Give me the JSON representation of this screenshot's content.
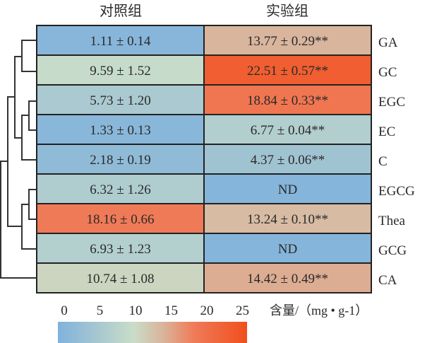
{
  "chart_data": {
    "type": "heatmap",
    "columns": [
      "对照组",
      "实验组"
    ],
    "rows": [
      "GA",
      "GC",
      "EGC",
      "EC",
      "C",
      "EGCG",
      "Thea",
      "GCG",
      "CA"
    ],
    "values": [
      [
        1.11,
        13.77
      ],
      [
        9.59,
        22.51
      ],
      [
        5.73,
        18.84
      ],
      [
        1.33,
        6.77
      ],
      [
        2.18,
        4.37
      ],
      [
        6.32,
        null
      ],
      [
        18.16,
        13.24
      ],
      [
        6.93,
        null
      ],
      [
        10.74,
        14.42
      ]
    ],
    "labels": [
      [
        "1.11 ± 0.14",
        "13.77 ± 0.29**"
      ],
      [
        "9.59 ± 1.52",
        "22.51 ± 0.57**"
      ],
      [
        "5.73 ± 1.20",
        "18.84 ± 0.33**"
      ],
      [
        "1.33 ± 0.13",
        "6.77 ± 0.04**"
      ],
      [
        "2.18 ± 0.19",
        "4.37 ± 0.06**"
      ],
      [
        "6.32 ± 1.26",
        "ND"
      ],
      [
        "18.16 ± 0.66",
        "13.24 ± 0.10**"
      ],
      [
        "6.93 ± 1.23",
        "ND"
      ],
      [
        "10.74 ± 1.08",
        "14.42 ± 0.49**"
      ]
    ],
    "colorbar": {
      "ticks": [
        "0",
        "5",
        "10",
        "15",
        "20",
        "25"
      ],
      "range": [
        0,
        25
      ],
      "label": "含量/（mg • g-1）",
      "stops": [
        [
          0,
          "#7fb2dc"
        ],
        [
          5,
          "#a5c6d1"
        ],
        [
          10,
          "#c9ddc8"
        ],
        [
          14,
          "#dab39a"
        ],
        [
          18,
          "#ef7b58"
        ],
        [
          25,
          "#f04e1c"
        ]
      ]
    },
    "dendrogram": "row clustering: ((((GA,GC),((EGC,EC),C)),((EGCG,Thea),GCG)),CA)"
  }
}
